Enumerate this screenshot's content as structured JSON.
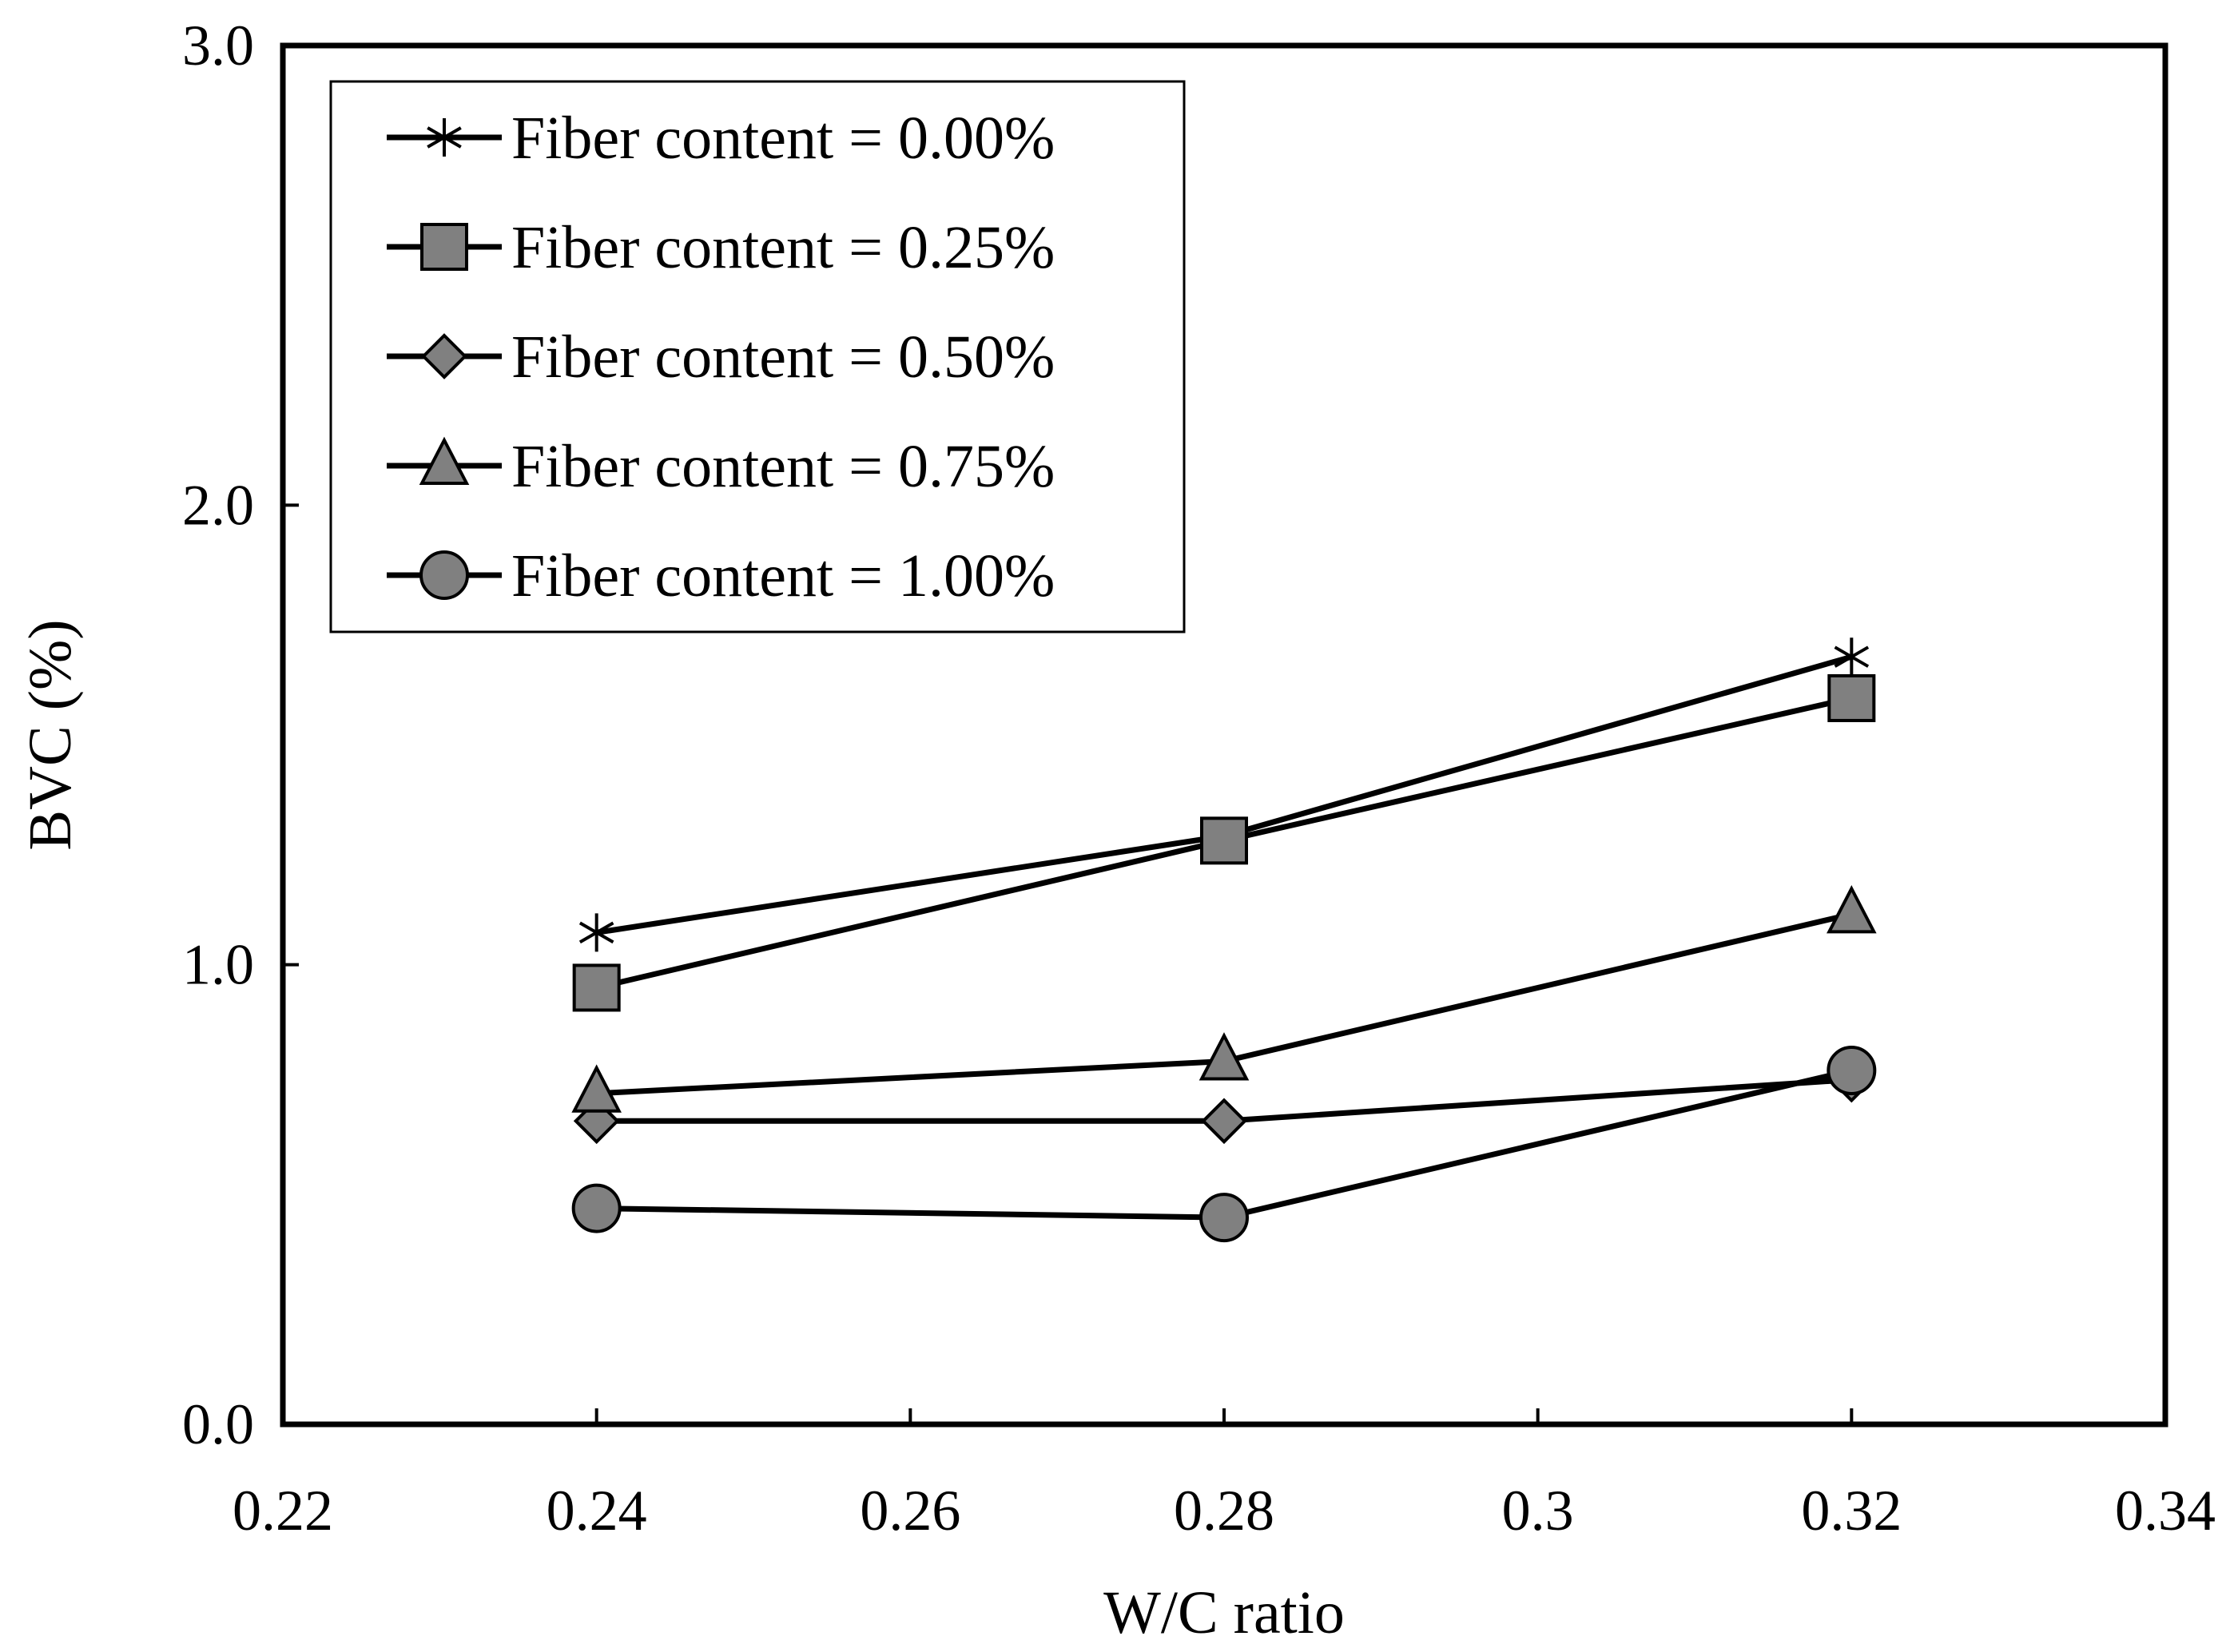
{
  "chart_data": {
    "type": "line",
    "title": "",
    "xlabel": "W/C ratio",
    "ylabel": "BVC (%)",
    "xlim": [
      0.22,
      0.34
    ],
    "ylim": [
      0.0,
      3.0
    ],
    "xticks": [
      0.22,
      0.24,
      0.26,
      0.28,
      0.3,
      0.32,
      0.34
    ],
    "xtick_labels": [
      "0.22",
      "0.24",
      "0.26",
      "0.28",
      "0.3",
      "0.32",
      "0.34"
    ],
    "yticks": [
      0.0,
      1.0,
      2.0,
      3.0
    ],
    "ytick_labels": [
      "0.0",
      "1.0",
      "2.0",
      "3.0"
    ],
    "grid": false,
    "legend_position": "top-left",
    "x": [
      0.24,
      0.28,
      0.32
    ],
    "series": [
      {
        "name": "Fiber content = 0.00%",
        "marker": "star",
        "values": [
          1.07,
          1.28,
          1.67
        ]
      },
      {
        "name": "Fiber content = 0.25%",
        "marker": "square",
        "values": [
          0.95,
          1.27,
          1.58
        ]
      },
      {
        "name": "Fiber content = 0.50%",
        "marker": "diamond",
        "values": [
          0.66,
          0.66,
          0.75
        ]
      },
      {
        "name": "Fiber content = 0.75%",
        "marker": "triangle",
        "values": [
          0.72,
          0.79,
          1.11
        ]
      },
      {
        "name": "Fiber content = 1.00%",
        "marker": "circle",
        "values": [
          0.47,
          0.45,
          0.77
        ]
      }
    ],
    "colors": {
      "line": "#000000",
      "marker_fill": "#808080",
      "marker_stroke": "#000000",
      "background": "#ffffff"
    }
  }
}
